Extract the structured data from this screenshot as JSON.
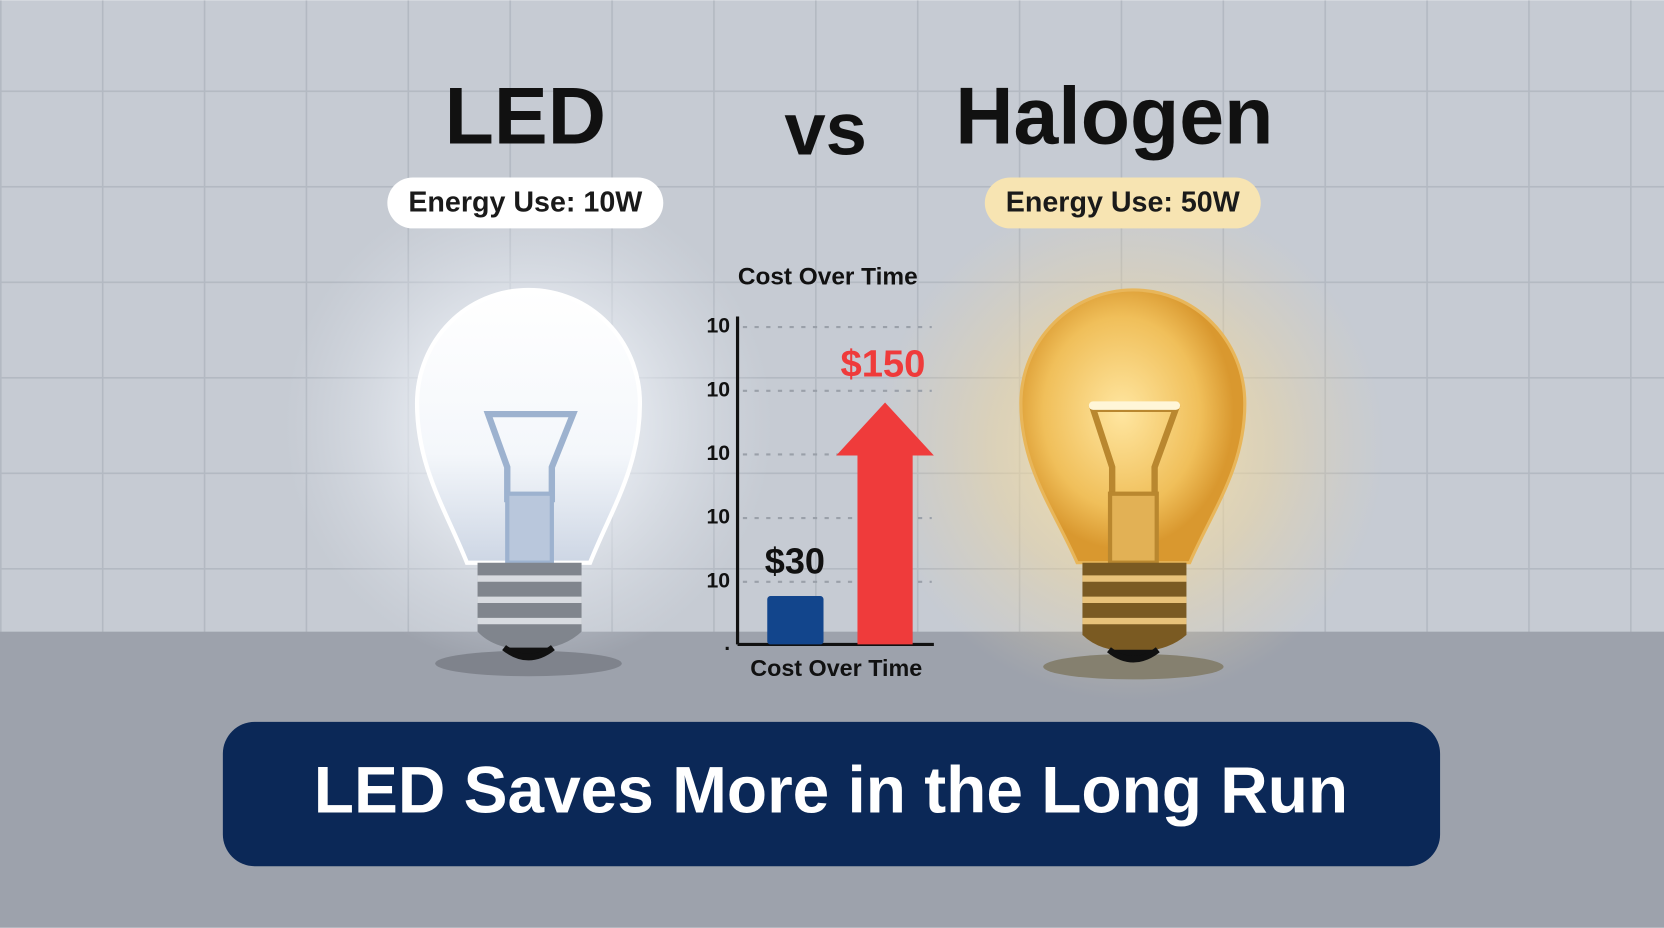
{
  "header": {
    "left_title": "LED",
    "vs": "vs",
    "right_title": "Halogen"
  },
  "pills": {
    "left": "Energy Use: 10W",
    "right": "Energy Use: 50W"
  },
  "cost_chart": {
    "title": "Cost Over Time",
    "x_label": "Cost Over Time",
    "axis_labels": [
      "10",
      "10",
      "10",
      "10",
      "10",
      "."
    ],
    "bars": [
      {
        "label": "$30",
        "value": 30,
        "color": "#12458c"
      },
      {
        "label": "$150",
        "value": 150,
        "color": "#ef3b3b"
      }
    ]
  },
  "banner": {
    "text": "LED Saves More in the Long Run"
  }
}
